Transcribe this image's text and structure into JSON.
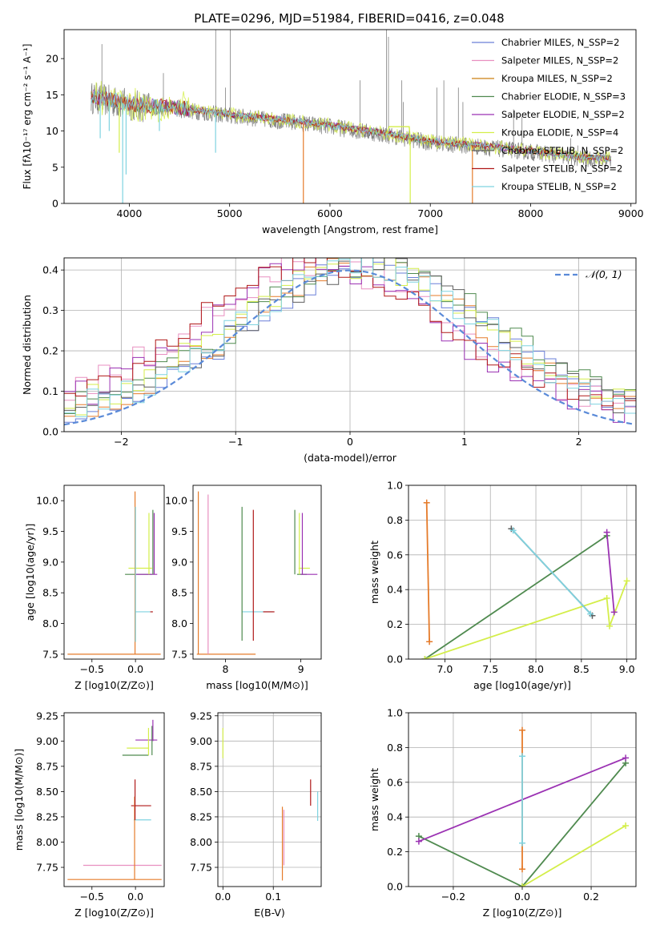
{
  "chart_data": [
    {
      "id": "spectrum",
      "type": "line",
      "title": "PLATE=0296, MJD=51984, FIBERID=0416, z=0.048",
      "xlabel": "wavelength [Angstrom, rest frame]",
      "ylabel": "Flux [fλ10⁻¹⁷ erg cm⁻² s⁻¹ A⁻¹]",
      "xlim": [
        3350,
        9050
      ],
      "ylim": [
        0,
        24
      ],
      "xticks": [
        4000,
        5000,
        6000,
        7000,
        8000,
        9000
      ],
      "yticks": [
        0,
        5,
        10,
        15,
        20
      ],
      "grid": false,
      "legend_position": "top-right",
      "observed_color": "#808080",
      "continuum": [
        [
          3620,
          14.6
        ],
        [
          3900,
          13.9
        ],
        [
          4100,
          13.4
        ],
        [
          4500,
          13.0
        ],
        [
          5000,
          12.1
        ],
        [
          5500,
          11.4
        ],
        [
          6000,
          10.6
        ],
        [
          6500,
          9.6
        ],
        [
          7000,
          8.4
        ],
        [
          7500,
          7.8
        ],
        [
          8000,
          7.1
        ],
        [
          8500,
          6.2
        ],
        [
          8800,
          6.0
        ]
      ],
      "series": [
        {
          "name": "Chabrier MILES, N_SSP=2",
          "color": "#6a7fd8"
        },
        {
          "name": "Salpeter MILES, N_SSP=2",
          "color": "#e88fc0"
        },
        {
          "name": "Kroupa MILES, N_SSP=2",
          "color": "#cc7f12"
        },
        {
          "name": "Chabrier ELODIE, N_SSP=3",
          "color": "#4f8a4f"
        },
        {
          "name": "Salpeter ELODIE, N_SSP=2",
          "color": "#9b32b3"
        },
        {
          "name": "Kroupa ELODIE, N_SSP=4",
          "color": "#d4ee4a"
        },
        {
          "name": "Chabrier STELIB, N_SSP=2",
          "color": "#5f5f5f"
        },
        {
          "name": "Salpeter STELIB, N_SSP=2",
          "color": "#b01818"
        },
        {
          "name": "Kroupa STELIB, N_SSP=2",
          "color": "#7fd3e0"
        }
      ]
    },
    {
      "id": "residuals",
      "type": "line",
      "xlabel": "(data-model)/error",
      "ylabel": "Normed distribution",
      "xlim": [
        -2.5,
        2.5
      ],
      "ylim": [
        0,
        0.43
      ],
      "xticks": [
        -2,
        -1,
        0,
        1,
        2
      ],
      "yticks": [
        0.0,
        0.1,
        0.2,
        0.3,
        0.4
      ],
      "grid": true,
      "legend_position": "top-right",
      "gaussian_label": "𝒩(0, 1)",
      "gaussian_color": "#5a8ad8",
      "histogram_colors": [
        "#6a7fd8",
        "#e88fc0",
        "#e57b2a",
        "#4f8a4f",
        "#9b32b3",
        "#d4ee4a",
        "#5f5f5f",
        "#b01818",
        "#7fd3e0"
      ]
    },
    {
      "id": "age-vs-Z",
      "type": "scatter",
      "xlabel": "Z [log10(Z/Z⊙)]",
      "ylabel": "age  [log10(age/yr)]",
      "xlim": [
        -0.82,
        0.33
      ],
      "ylim": [
        7.42,
        10.25
      ],
      "xticks": [
        -0.5,
        0.0
      ],
      "yticks": [
        7.5,
        8.0,
        8.5,
        9.0,
        9.5,
        10.0
      ],
      "hlines": [
        {
          "x0": -0.78,
          "x1": 0.29,
          "y": 7.5,
          "color": "#e57b2a"
        },
        {
          "x0": -0.01,
          "x1": 0.17,
          "y": 8.19,
          "color": "#7fd3e0"
        },
        {
          "x0": 0.17,
          "x1": 0.2,
          "y": 8.19,
          "color": "#b01818"
        },
        {
          "x0": -0.12,
          "x1": 0.19,
          "y": 8.8,
          "color": "#4f8a4f"
        },
        {
          "x0": -0.08,
          "x1": 0.19,
          "y": 8.9,
          "color": "#d4ee4a"
        },
        {
          "x0": 0.0,
          "x1": 0.25,
          "y": 8.8,
          "color": "#9b32b3"
        }
      ],
      "vlines": [
        {
          "x": -0.005,
          "y0": 7.5,
          "y1": 10.15,
          "color": "#e57b2a"
        },
        {
          "x": 0.0,
          "y0": 7.7,
          "y1": 9.9,
          "color": "#7fd3e0"
        },
        {
          "x": 0.155,
          "y0": 8.8,
          "y1": 9.8,
          "color": "#d4ee4a"
        },
        {
          "x": 0.2,
          "y0": 8.8,
          "y1": 9.85,
          "color": "#4f8a4f"
        },
        {
          "x": 0.215,
          "y0": 8.8,
          "y1": 9.8,
          "color": "#9b32b3"
        }
      ]
    },
    {
      "id": "age-vs-mass",
      "type": "scatter",
      "xlabel": "mass [log10(M/M⊙)]",
      "xlim": [
        7.57,
        9.27
      ],
      "ylim": [
        7.42,
        10.25
      ],
      "xticks": [
        8,
        9
      ],
      "yticks": [
        7.5,
        8.0,
        8.5,
        9.0,
        9.5,
        10.0
      ],
      "hlines": [
        {
          "x0": 7.62,
          "x1": 8.4,
          "y": 7.5,
          "color": "#e57b2a"
        },
        {
          "x0": 8.22,
          "x1": 8.63,
          "y": 8.19,
          "color": "#7fd3e0"
        },
        {
          "x0": 8.5,
          "x1": 8.65,
          "y": 8.19,
          "color": "#b01818"
        },
        {
          "x0": 8.95,
          "x1": 9.08,
          "y": 8.8,
          "color": "#4f8a4f"
        },
        {
          "x0": 8.97,
          "x1": 9.12,
          "y": 8.9,
          "color": "#d4ee4a"
        },
        {
          "x0": 9.0,
          "x1": 9.22,
          "y": 8.8,
          "color": "#9b32b3"
        }
      ],
      "vlines": [
        {
          "x": 7.64,
          "y0": 7.5,
          "y1": 10.15,
          "color": "#e57b2a"
        },
        {
          "x": 7.77,
          "y0": 7.5,
          "y1": 10.1,
          "color": "#e88fc0"
        },
        {
          "x": 8.22,
          "y0": 7.72,
          "y1": 9.9,
          "color": "#4f8a4f"
        },
        {
          "x": 8.37,
          "y0": 7.72,
          "y1": 9.85,
          "color": "#b01818"
        },
        {
          "x": 8.92,
          "y0": 8.8,
          "y1": 9.85,
          "color": "#4f8a4f"
        },
        {
          "x": 8.98,
          "y0": 8.8,
          "y1": 9.8,
          "color": "#d4ee4a"
        },
        {
          "x": 9.02,
          "y0": 8.8,
          "y1": 9.8,
          "color": "#9b32b3"
        }
      ]
    },
    {
      "id": "weight-vs-age",
      "type": "line",
      "xlabel": "age  [log10(age/yr)]",
      "ylabel": "mass weight",
      "xlim": [
        6.6,
        9.1
      ],
      "ylim": [
        0,
        1
      ],
      "xticks": [
        7.0,
        7.5,
        8.0,
        8.5,
        9.0
      ],
      "yticks": [
        0.0,
        0.2,
        0.4,
        0.6,
        0.8,
        1.0
      ],
      "grid": true,
      "series": [
        {
          "color": "#4f8a4f",
          "x": [
            6.78,
            8.78
          ],
          "y": [
            0.0,
            0.71
          ]
        },
        {
          "color": "#d4ee4a",
          "x": [
            6.78,
            8.78,
            8.81,
            9.0
          ],
          "y": [
            0.0,
            0.35,
            0.19,
            0.45
          ]
        },
        {
          "color": "#9b32b3",
          "x": [
            8.78,
            8.86
          ],
          "y": [
            0.73,
            0.27
          ]
        },
        {
          "color": "#5f5f5f",
          "x": [
            7.73,
            8.62
          ],
          "y": [
            0.75,
            0.25
          ]
        },
        {
          "color": "#7fd3e0",
          "x": [
            7.75,
            8.6
          ],
          "y": [
            0.74,
            0.26
          ]
        },
        {
          "color": "#e57b2a",
          "x": [
            6.8,
            6.83
          ],
          "y": [
            0.9,
            0.1
          ]
        }
      ]
    },
    {
      "id": "mass-vs-Z",
      "type": "scatter",
      "xlabel": "Z [log10(Z/Z⊙)]",
      "ylabel": "mass [log10(M/M⊙)]",
      "xlim": [
        -0.82,
        0.33
      ],
      "ylim": [
        7.56,
        9.28
      ],
      "xticks": [
        -0.5,
        0.0
      ],
      "yticks": [
        7.75,
        8.0,
        8.25,
        8.5,
        8.75,
        9.0,
        9.25
      ],
      "hlines": [
        {
          "x0": -0.78,
          "x1": 0.3,
          "y": 7.63,
          "color": "#e57b2a"
        },
        {
          "x0": -0.6,
          "x1": 0.3,
          "y": 7.77,
          "color": "#e88fc0"
        },
        {
          "x0": -0.02,
          "x1": 0.18,
          "y": 8.22,
          "color": "#7fd3e0"
        },
        {
          "x0": -0.05,
          "x1": 0.18,
          "y": 8.36,
          "color": "#b01818"
        },
        {
          "x0": -0.15,
          "x1": 0.15,
          "y": 8.86,
          "color": "#4f8a4f"
        },
        {
          "x0": -0.1,
          "x1": 0.15,
          "y": 8.93,
          "color": "#d4ee4a"
        },
        {
          "x0": 0.0,
          "x1": 0.25,
          "y": 9.01,
          "color": "#9b32b3"
        }
      ],
      "vlines": [
        {
          "x": -0.01,
          "y0": 7.63,
          "y1": 8.45,
          "color": "#e57b2a"
        },
        {
          "x": -0.005,
          "y0": 8.22,
          "y1": 8.62,
          "color": "#b01818"
        },
        {
          "x": 0.15,
          "y0": 8.86,
          "y1": 9.13,
          "color": "#d4ee4a"
        },
        {
          "x": 0.19,
          "y0": 8.86,
          "y1": 9.15,
          "color": "#4f8a4f"
        },
        {
          "x": 0.2,
          "y0": 9.0,
          "y1": 9.21,
          "color": "#9b32b3"
        }
      ]
    },
    {
      "id": "mass-vs-ebv",
      "type": "scatter",
      "xlabel": "E(B-V)",
      "xlim": [
        -0.01,
        0.195
      ],
      "ylim": [
        7.56,
        9.28
      ],
      "xticks": [
        0.0,
        0.1
      ],
      "yticks": [
        7.75,
        8.0,
        8.25,
        8.5,
        8.75,
        9.0,
        9.25
      ],
      "vlines": [
        {
          "x": 0.0,
          "y0": 8.83,
          "y1": 9.13,
          "color": "#d4ee4a"
        },
        {
          "x": 0.118,
          "y0": 7.62,
          "y1": 8.35,
          "color": "#e57b2a"
        },
        {
          "x": 0.121,
          "y0": 7.77,
          "y1": 8.32,
          "color": "#e88fc0"
        },
        {
          "x": 0.174,
          "y0": 8.36,
          "y1": 8.62,
          "color": "#b01818"
        },
        {
          "x": 0.188,
          "y0": 8.21,
          "y1": 8.5,
          "color": "#7fd3e0"
        }
      ]
    },
    {
      "id": "weight-vs-Z",
      "type": "line",
      "xlabel": "Z [log10(Z/Z⊙)]",
      "ylabel": "mass weight",
      "xlim": [
        -0.33,
        0.33
      ],
      "ylim": [
        0,
        1
      ],
      "xticks": [
        -0.2,
        0.0,
        0.2
      ],
      "yticks": [
        0.0,
        0.2,
        0.4,
        0.6,
        0.8,
        1.0
      ],
      "grid": true,
      "series": [
        {
          "color": "#4f8a4f",
          "x": [
            -0.3,
            0.0,
            0.3
          ],
          "y": [
            0.29,
            0.0,
            0.71
          ]
        },
        {
          "color": "#9b32b3",
          "x": [
            -0.3,
            0.3
          ],
          "y": [
            0.26,
            0.74
          ]
        },
        {
          "color": "#d4ee4a",
          "x": [
            0.0,
            0.3
          ],
          "y": [
            0.0,
            0.35
          ]
        },
        {
          "color": "#e57b2a",
          "x": [
            0.0,
            0.0
          ],
          "y": [
            0.1,
            0.9
          ]
        },
        {
          "color": "#7fd3e0",
          "x": [
            0.0,
            0.0
          ],
          "y": [
            0.25,
            0.75
          ]
        }
      ]
    }
  ]
}
